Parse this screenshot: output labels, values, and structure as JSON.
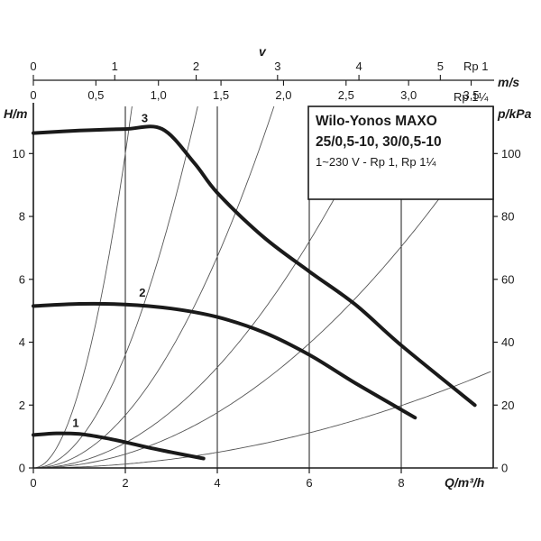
{
  "chart_data": {
    "type": "line",
    "legend": {
      "title_line1": "Wilo-Yonos MAXO",
      "title_line2": "25/0,5-10, 30/0,5-10",
      "subtitle": "1~230 V - Rp 1, Rp 1¼"
    },
    "x_axis": {
      "label": "Q/m³/h",
      "range": [
        0,
        10
      ],
      "ticks": [
        0,
        2,
        4,
        6,
        8
      ],
      "tick_labels": [
        "0",
        "2",
        "4",
        "6",
        "8"
      ]
    },
    "y_axis": {
      "label": "H/m",
      "range": [
        0,
        11.5
      ],
      "ticks": [
        0,
        2,
        4,
        6,
        8,
        10
      ],
      "tick_labels": [
        "0",
        "2",
        "4",
        "6",
        "8",
        "10"
      ]
    },
    "y2_axis": {
      "label": "p/kPa",
      "range": [
        0,
        115
      ],
      "ticks": [
        0,
        20,
        40,
        60,
        80,
        100
      ],
      "tick_labels": [
        "0",
        "20",
        "40",
        "60",
        "80",
        "100"
      ]
    },
    "velocity_axes": {
      "title": "v",
      "unit": "m/s",
      "top": {
        "name": "Rp 1",
        "ticks": [
          0,
          1,
          2,
          3,
          4,
          5
        ],
        "tick_labels": [
          "0",
          "1",
          "2",
          "3",
          "4",
          "5"
        ],
        "q_per_unit": 1.77
      },
      "bottom": {
        "name": "Rp 1¼",
        "ticks": [
          0,
          0.5,
          1.0,
          1.5,
          2.0,
          2.5,
          3.0,
          3.5
        ],
        "tick_labels": [
          "0",
          "0,5",
          "1,0",
          "1,5",
          "2,0",
          "2,5",
          "3,0",
          "3,5"
        ],
        "q_per_unit": 2.72
      }
    },
    "grid": {
      "vertical_x": [
        2,
        4,
        6,
        8
      ]
    },
    "series": [
      {
        "label": "1",
        "x": [
          0,
          0.5,
          1.0,
          1.5,
          2.0,
          2.5,
          3.0,
          3.7
        ],
        "y": [
          1.05,
          1.1,
          1.08,
          0.97,
          0.82,
          0.65,
          0.5,
          0.3
        ]
      },
      {
        "label": "2",
        "x": [
          0,
          1.0,
          2.0,
          3.0,
          4.0,
          5.0,
          6.0,
          7.0,
          8.3
        ],
        "y": [
          5.15,
          5.22,
          5.2,
          5.07,
          4.8,
          4.32,
          3.6,
          2.7,
          1.6
        ]
      },
      {
        "label": "3",
        "x": [
          0,
          1.0,
          2.0,
          2.8,
          3.5,
          4.0,
          5.0,
          6.0,
          7.0,
          8.0,
          9.6
        ],
        "y": [
          10.65,
          10.73,
          10.78,
          10.78,
          9.7,
          8.75,
          7.35,
          6.25,
          5.2,
          3.9,
          2.0
        ]
      }
    ],
    "system_curves": [
      {
        "k": 2.5
      },
      {
        "k": 0.9
      },
      {
        "k": 0.42
      },
      {
        "k": 0.2
      },
      {
        "k": 0.11
      },
      {
        "k": 0.031
      }
    ]
  }
}
